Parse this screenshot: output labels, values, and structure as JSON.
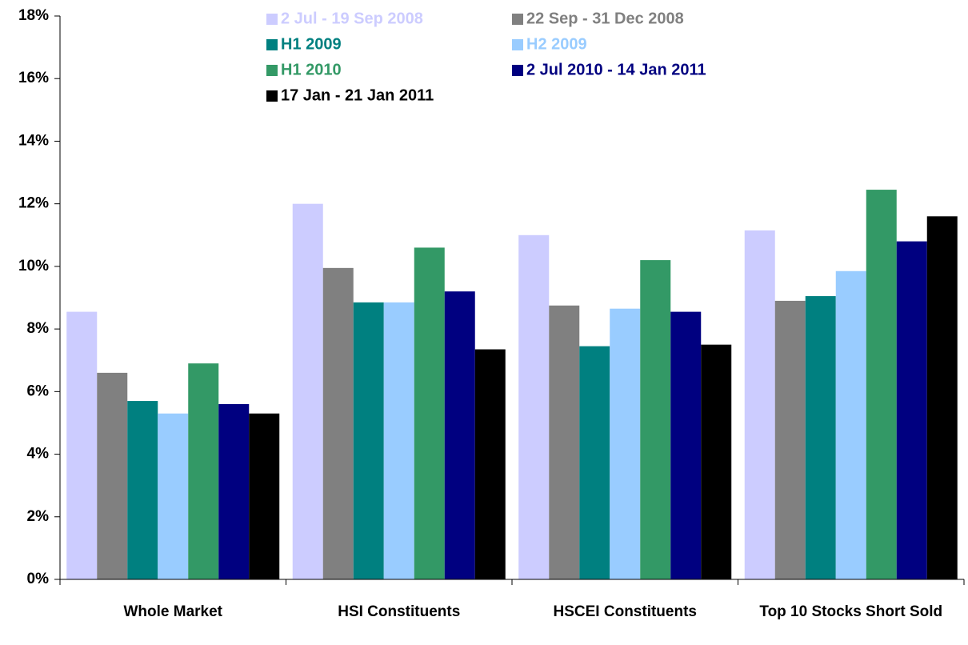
{
  "chart_data": {
    "type": "bar",
    "categories": [
      "Whole Market",
      "HSI Constituents",
      "HSCEI Constituents",
      "Top 10 Stocks Short Sold"
    ],
    "series": [
      {
        "name": "2 Jul - 19 Sep 2008",
        "color": "#ccccff",
        "values": [
          8.55,
          12.0,
          11.0,
          11.15
        ]
      },
      {
        "name": "22 Sep - 31 Dec 2008",
        "color": "#808080",
        "values": [
          6.6,
          9.95,
          8.75,
          8.9
        ]
      },
      {
        "name": "H1 2009",
        "color": "#008080",
        "values": [
          5.7,
          8.85,
          7.45,
          9.05
        ]
      },
      {
        "name": "H2 2009",
        "color": "#99ccff",
        "values": [
          5.3,
          8.85,
          8.65,
          9.85
        ]
      },
      {
        "name": "H1 2010",
        "color": "#339966",
        "values": [
          6.9,
          10.6,
          10.2,
          12.45
        ]
      },
      {
        "name": "2 Jul 2010 - 14 Jan 2011",
        "color": "#000080",
        "values": [
          5.6,
          9.2,
          8.55,
          10.8
        ]
      },
      {
        "name": "17 Jan - 21 Jan 2011",
        "color": "#000000",
        "values": [
          5.3,
          7.35,
          7.5,
          11.6
        ]
      }
    ],
    "ylim": [
      0,
      18
    ],
    "yticks": [
      {
        "value": 0,
        "label": "0%"
      },
      {
        "value": 2,
        "label": "2%"
      },
      {
        "value": 4,
        "label": "4%"
      },
      {
        "value": 6,
        "label": "6%"
      },
      {
        "value": 8,
        "label": "8%"
      },
      {
        "value": 10,
        "label": "10%"
      },
      {
        "value": 12,
        "label": "12%"
      },
      {
        "value": 14,
        "label": "14%"
      },
      {
        "value": 16,
        "label": "16%"
      },
      {
        "value": 18,
        "label": "18%"
      }
    ],
    "grid": false,
    "legend": "top"
  }
}
